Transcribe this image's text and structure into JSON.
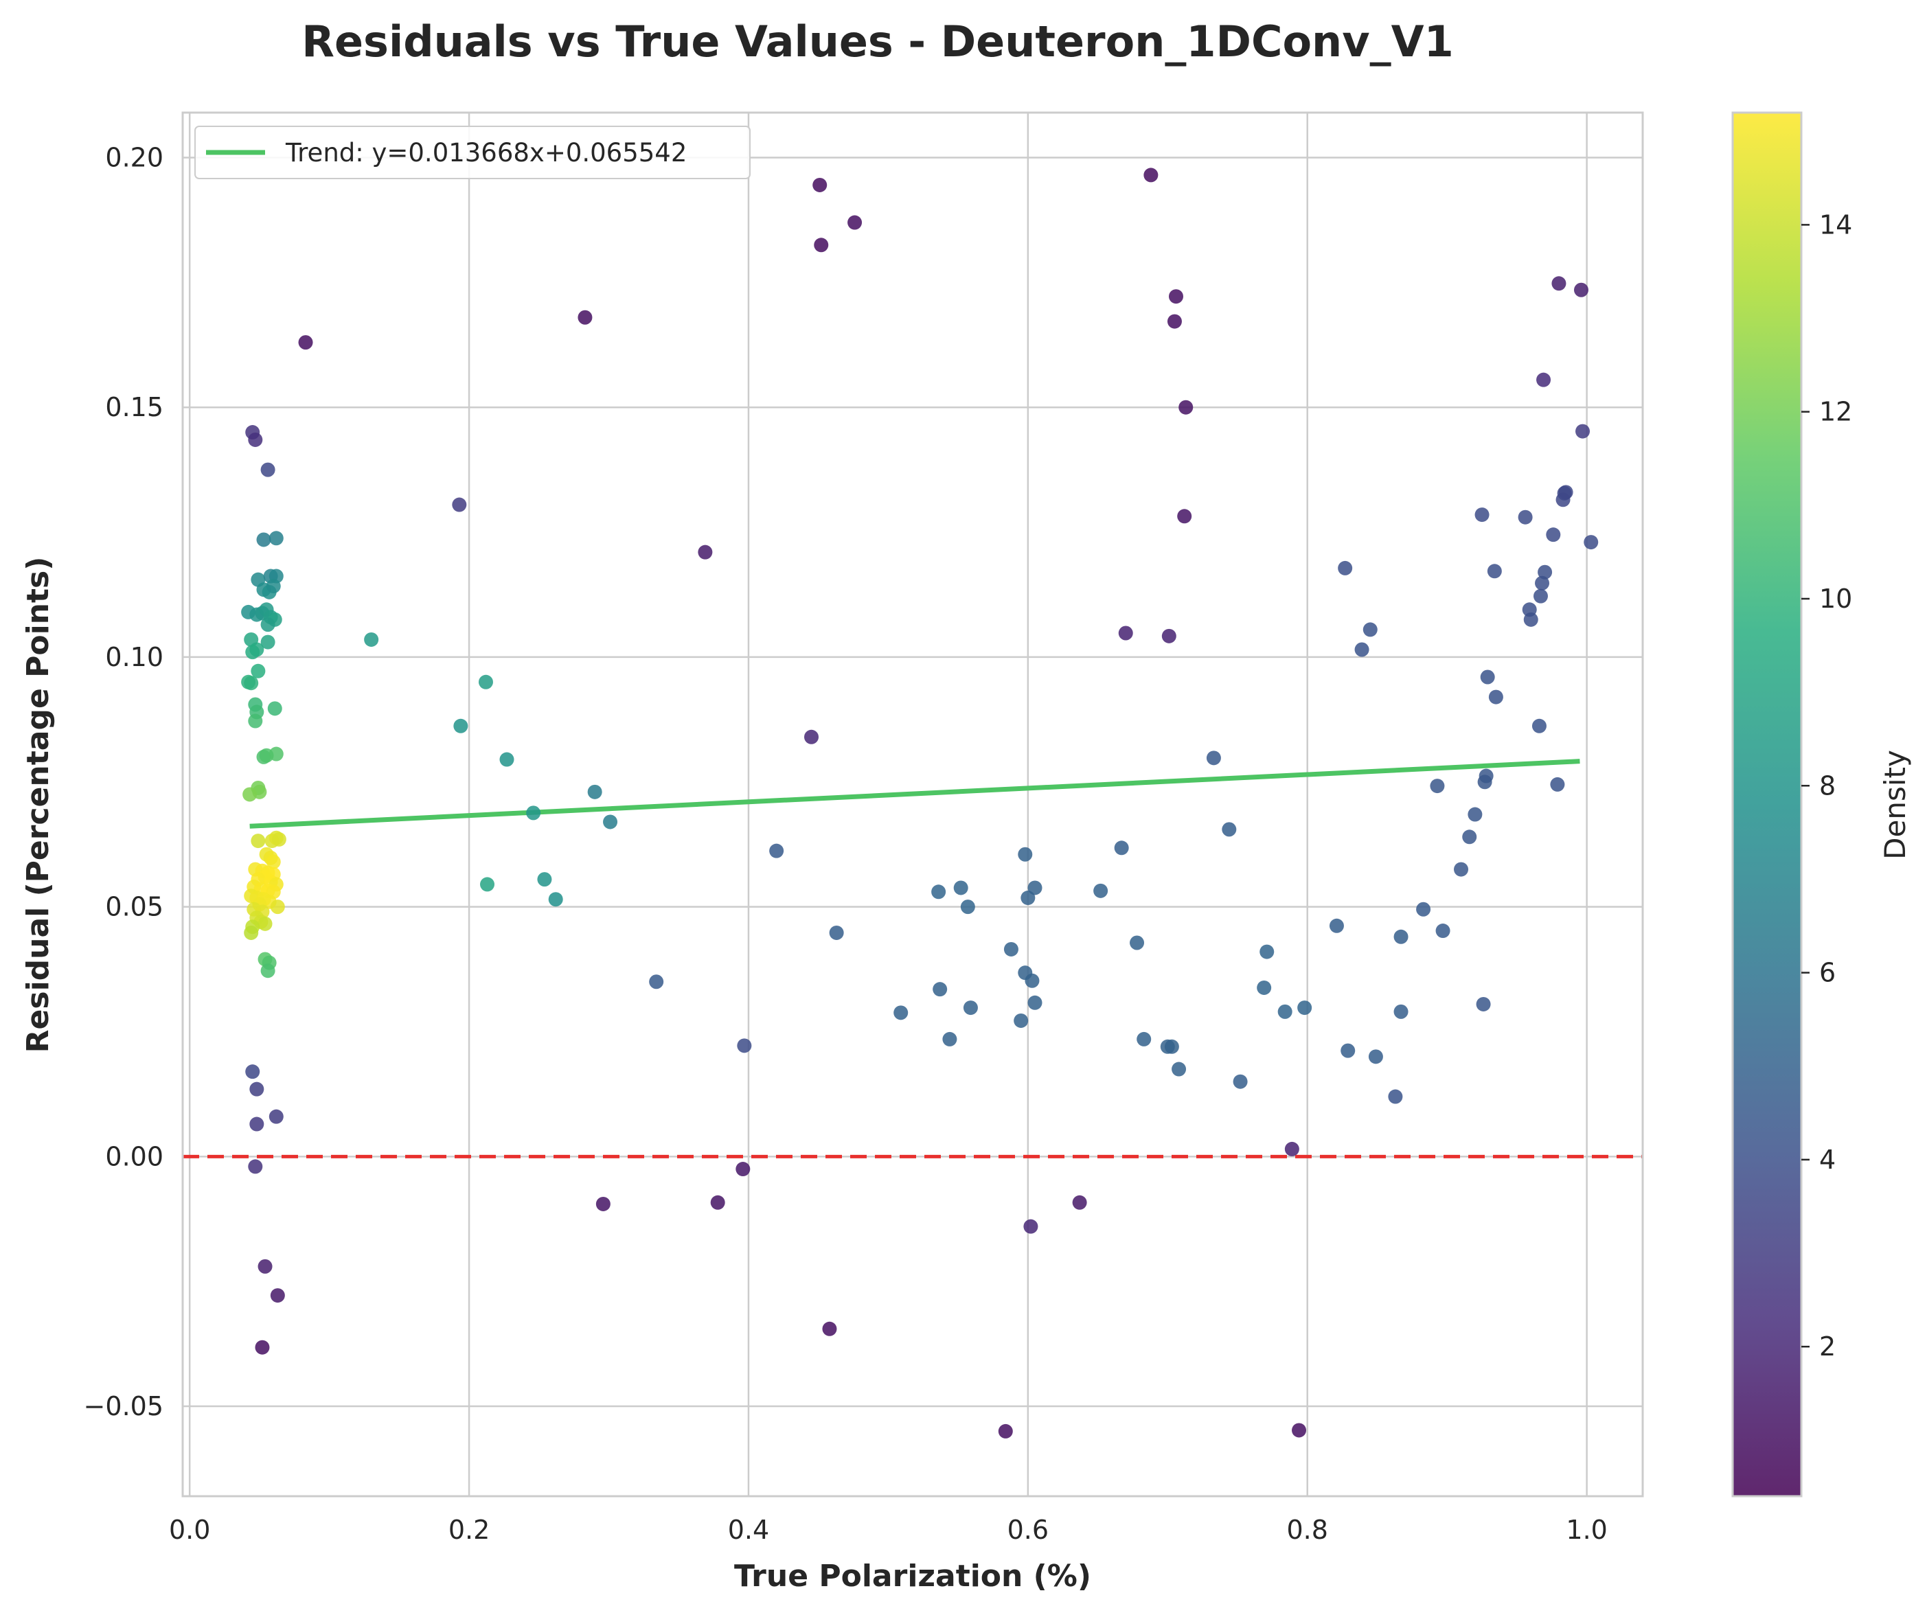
{
  "chart_data": {
    "type": "scatter",
    "title": "Residuals vs True Values - Deuteron_1DConv_V1",
    "xlabel": "True Polarization (%)",
    "ylabel": "Residual (Percentage Points)",
    "xlim": [
      -0.005,
      1.04
    ],
    "ylim": [
      -0.068,
      0.209
    ],
    "xticks": [
      0.0,
      0.2,
      0.4,
      0.6,
      0.8,
      1.0
    ],
    "xtick_labels": [
      "0.0",
      "0.2",
      "0.4",
      "0.6",
      "0.8",
      "1.0"
    ],
    "yticks": [
      -0.05,
      0.0,
      0.05,
      0.1,
      0.15,
      0.2
    ],
    "ytick_labels": [
      "−0.05",
      "0.00",
      "0.05",
      "0.10",
      "0.15",
      "0.20"
    ],
    "grid": true,
    "zero_line": {
      "y": 0.0,
      "color": "#e8302e",
      "style": "dashed"
    },
    "trend": {
      "label": "Trend: y=0.013668x+0.065542",
      "slope": 0.013668,
      "intercept": 0.065542,
      "x_range": [
        0.043,
        0.995
      ],
      "color": "#4dc463"
    },
    "legend_position": "top-left",
    "colorbar": {
      "label": "Density",
      "range": [
        0.4,
        15.2
      ],
      "ticks": [
        2,
        4,
        6,
        8,
        10,
        12,
        14
      ],
      "tick_labels": [
        "2",
        "4",
        "6",
        "8",
        "10",
        "12",
        "14"
      ],
      "colormap": "viridis"
    },
    "points": [
      {
        "x": 0.045,
        "y": 0.145,
        "d": 2.6
      },
      {
        "x": 0.047,
        "y": 0.1435,
        "d": 2.4
      },
      {
        "x": 0.056,
        "y": 0.1375,
        "d": 3.6
      },
      {
        "x": 0.053,
        "y": 0.1235,
        "d": 6.5
      },
      {
        "x": 0.062,
        "y": 0.1238,
        "d": 6.8
      },
      {
        "x": 0.049,
        "y": 0.1155,
        "d": 7.4
      },
      {
        "x": 0.058,
        "y": 0.1162,
        "d": 7.0
      },
      {
        "x": 0.062,
        "y": 0.1162,
        "d": 7.2
      },
      {
        "x": 0.053,
        "y": 0.1135,
        "d": 7.6
      },
      {
        "x": 0.057,
        "y": 0.113,
        "d": 7.8
      },
      {
        "x": 0.06,
        "y": 0.1142,
        "d": 7.5
      },
      {
        "x": 0.042,
        "y": 0.109,
        "d": 7.8
      },
      {
        "x": 0.048,
        "y": 0.1085,
        "d": 8.0
      },
      {
        "x": 0.052,
        "y": 0.1088,
        "d": 8.2
      },
      {
        "x": 0.055,
        "y": 0.1095,
        "d": 8.4
      },
      {
        "x": 0.058,
        "y": 0.108,
        "d": 8.6
      },
      {
        "x": 0.061,
        "y": 0.1075,
        "d": 8.8
      },
      {
        "x": 0.056,
        "y": 0.1065,
        "d": 8.5
      },
      {
        "x": 0.044,
        "y": 0.1035,
        "d": 9.2
      },
      {
        "x": 0.056,
        "y": 0.103,
        "d": 9.1
      },
      {
        "x": 0.048,
        "y": 0.1015,
        "d": 9.4
      },
      {
        "x": 0.045,
        "y": 0.101,
        "d": 9.5
      },
      {
        "x": 0.042,
        "y": 0.095,
        "d": 9.8
      },
      {
        "x": 0.044,
        "y": 0.0948,
        "d": 9.9
      },
      {
        "x": 0.049,
        "y": 0.0972,
        "d": 9.7
      },
      {
        "x": 0.047,
        "y": 0.0905,
        "d": 10.2
      },
      {
        "x": 0.048,
        "y": 0.089,
        "d": 10.4
      },
      {
        "x": 0.061,
        "y": 0.0897,
        "d": 10.3
      },
      {
        "x": 0.047,
        "y": 0.0872,
        "d": 10.6
      },
      {
        "x": 0.053,
        "y": 0.08,
        "d": 10.9
      },
      {
        "x": 0.055,
        "y": 0.0803,
        "d": 11.0
      },
      {
        "x": 0.062,
        "y": 0.0806,
        "d": 11.1
      },
      {
        "x": 0.049,
        "y": 0.0738,
        "d": 12.0
      },
      {
        "x": 0.05,
        "y": 0.073,
        "d": 12.1
      },
      {
        "x": 0.043,
        "y": 0.0725,
        "d": 12.2
      },
      {
        "x": 0.049,
        "y": 0.0632,
        "d": 14.2
      },
      {
        "x": 0.059,
        "y": 0.0632,
        "d": 14.4
      },
      {
        "x": 0.062,
        "y": 0.0638,
        "d": 14.5
      },
      {
        "x": 0.064,
        "y": 0.0635,
        "d": 14.4
      },
      {
        "x": 0.055,
        "y": 0.0605,
        "d": 14.8
      },
      {
        "x": 0.058,
        "y": 0.0598,
        "d": 14.9
      },
      {
        "x": 0.06,
        "y": 0.059,
        "d": 15.0
      },
      {
        "x": 0.047,
        "y": 0.0575,
        "d": 15.0
      },
      {
        "x": 0.052,
        "y": 0.0572,
        "d": 15.1
      },
      {
        "x": 0.056,
        "y": 0.0568,
        "d": 15.1
      },
      {
        "x": 0.06,
        "y": 0.0565,
        "d": 15.2
      },
      {
        "x": 0.054,
        "y": 0.056,
        "d": 15.2
      },
      {
        "x": 0.049,
        "y": 0.0555,
        "d": 15.1
      },
      {
        "x": 0.058,
        "y": 0.055,
        "d": 15.2
      },
      {
        "x": 0.062,
        "y": 0.0545,
        "d": 15.0
      },
      {
        "x": 0.046,
        "y": 0.054,
        "d": 15.0
      },
      {
        "x": 0.051,
        "y": 0.0535,
        "d": 15.1
      },
      {
        "x": 0.056,
        "y": 0.0532,
        "d": 15.2
      },
      {
        "x": 0.06,
        "y": 0.053,
        "d": 15.1
      },
      {
        "x": 0.044,
        "y": 0.0522,
        "d": 14.8
      },
      {
        "x": 0.048,
        "y": 0.0518,
        "d": 14.9
      },
      {
        "x": 0.053,
        "y": 0.0515,
        "d": 15.0
      },
      {
        "x": 0.057,
        "y": 0.051,
        "d": 15.0
      },
      {
        "x": 0.05,
        "y": 0.0505,
        "d": 14.9
      },
      {
        "x": 0.063,
        "y": 0.05,
        "d": 14.6
      },
      {
        "x": 0.046,
        "y": 0.0495,
        "d": 14.5
      },
      {
        "x": 0.052,
        "y": 0.049,
        "d": 14.6
      },
      {
        "x": 0.048,
        "y": 0.0478,
        "d": 14.3
      },
      {
        "x": 0.051,
        "y": 0.047,
        "d": 14.2
      },
      {
        "x": 0.054,
        "y": 0.0466,
        "d": 14.0
      },
      {
        "x": 0.045,
        "y": 0.046,
        "d": 13.8
      },
      {
        "x": 0.044,
        "y": 0.0448,
        "d": 13.6
      },
      {
        "x": 0.054,
        "y": 0.0395,
        "d": 11.2
      },
      {
        "x": 0.057,
        "y": 0.0388,
        "d": 11.0
      },
      {
        "x": 0.056,
        "y": 0.0372,
        "d": 10.8
      },
      {
        "x": 0.045,
        "y": 0.017,
        "d": 3.6
      },
      {
        "x": 0.048,
        "y": 0.0135,
        "d": 3.2
      },
      {
        "x": 0.048,
        "y": 0.0065,
        "d": 2.9
      },
      {
        "x": 0.062,
        "y": 0.008,
        "d": 3.0
      },
      {
        "x": 0.047,
        "y": -0.002,
        "d": 2.5
      },
      {
        "x": 0.054,
        "y": -0.022,
        "d": 1.6
      },
      {
        "x": 0.063,
        "y": -0.0278,
        "d": 1.4
      },
      {
        "x": 0.052,
        "y": -0.0382,
        "d": 1.0
      },
      {
        "x": 0.083,
        "y": 0.163,
        "d": 1.0
      },
      {
        "x": 0.13,
        "y": 0.1035,
        "d": 8.4
      },
      {
        "x": 0.193,
        "y": 0.1305,
        "d": 3.0
      },
      {
        "x": 0.194,
        "y": 0.0862,
        "d": 8.0
      },
      {
        "x": 0.212,
        "y": 0.095,
        "d": 8.6
      },
      {
        "x": 0.213,
        "y": 0.0545,
        "d": 9.0
      },
      {
        "x": 0.227,
        "y": 0.0795,
        "d": 8.0
      },
      {
        "x": 0.246,
        "y": 0.0688,
        "d": 8.2
      },
      {
        "x": 0.254,
        "y": 0.0555,
        "d": 8.0
      },
      {
        "x": 0.262,
        "y": 0.0515,
        "d": 7.8
      },
      {
        "x": 0.283,
        "y": 0.168,
        "d": 1.0
      },
      {
        "x": 0.29,
        "y": 0.073,
        "d": 6.5
      },
      {
        "x": 0.296,
        "y": -0.0095,
        "d": 1.2
      },
      {
        "x": 0.301,
        "y": 0.067,
        "d": 6.6
      },
      {
        "x": 0.334,
        "y": 0.035,
        "d": 4.6
      },
      {
        "x": 0.369,
        "y": 0.121,
        "d": 1.5
      },
      {
        "x": 0.378,
        "y": -0.0092,
        "d": 1.2
      },
      {
        "x": 0.396,
        "y": -0.0025,
        "d": 1.3
      },
      {
        "x": 0.397,
        "y": 0.0222,
        "d": 3.8
      },
      {
        "x": 0.42,
        "y": 0.0612,
        "d": 4.6
      },
      {
        "x": 0.445,
        "y": 0.084,
        "d": 2.0
      },
      {
        "x": 0.451,
        "y": 0.1945,
        "d": 0.9
      },
      {
        "x": 0.452,
        "y": 0.1825,
        "d": 0.9
      },
      {
        "x": 0.458,
        "y": -0.0345,
        "d": 1.0
      },
      {
        "x": 0.463,
        "y": 0.0448,
        "d": 4.8
      },
      {
        "x": 0.476,
        "y": 0.187,
        "d": 1.0
      },
      {
        "x": 0.509,
        "y": 0.0288,
        "d": 5.0
      },
      {
        "x": 0.536,
        "y": 0.053,
        "d": 5.2
      },
      {
        "x": 0.537,
        "y": 0.0335,
        "d": 5.0
      },
      {
        "x": 0.544,
        "y": 0.0235,
        "d": 5.0
      },
      {
        "x": 0.552,
        "y": 0.0538,
        "d": 5.2
      },
      {
        "x": 0.557,
        "y": 0.05,
        "d": 5.2
      },
      {
        "x": 0.559,
        "y": 0.0298,
        "d": 5.0
      },
      {
        "x": 0.584,
        "y": -0.055,
        "d": 1.0
      },
      {
        "x": 0.588,
        "y": 0.0415,
        "d": 5.0
      },
      {
        "x": 0.595,
        "y": 0.0272,
        "d": 5.0
      },
      {
        "x": 0.598,
        "y": 0.0605,
        "d": 5.0
      },
      {
        "x": 0.598,
        "y": 0.0368,
        "d": 5.0
      },
      {
        "x": 0.6,
        "y": 0.0518,
        "d": 5.0
      },
      {
        "x": 0.602,
        "y": -0.014,
        "d": 2.0
      },
      {
        "x": 0.603,
        "y": 0.0352,
        "d": 5.0
      },
      {
        "x": 0.605,
        "y": 0.0538,
        "d": 5.0
      },
      {
        "x": 0.605,
        "y": 0.0308,
        "d": 5.0
      },
      {
        "x": 0.637,
        "y": -0.0092,
        "d": 1.4
      },
      {
        "x": 0.652,
        "y": 0.0532,
        "d": 5.0
      },
      {
        "x": 0.667,
        "y": 0.0618,
        "d": 4.8
      },
      {
        "x": 0.67,
        "y": 0.1048,
        "d": 1.8
      },
      {
        "x": 0.678,
        "y": 0.0428,
        "d": 5.0
      },
      {
        "x": 0.683,
        "y": 0.0235,
        "d": 5.0
      },
      {
        "x": 0.688,
        "y": 0.1965,
        "d": 0.9
      },
      {
        "x": 0.7,
        "y": 0.022,
        "d": 5.0
      },
      {
        "x": 0.701,
        "y": 0.1042,
        "d": 1.8
      },
      {
        "x": 0.703,
        "y": 0.022,
        "d": 5.0
      },
      {
        "x": 0.705,
        "y": 0.1672,
        "d": 1.0
      },
      {
        "x": 0.706,
        "y": 0.1722,
        "d": 1.0
      },
      {
        "x": 0.708,
        "y": 0.0175,
        "d": 5.0
      },
      {
        "x": 0.712,
        "y": 0.1282,
        "d": 1.2
      },
      {
        "x": 0.713,
        "y": 0.15,
        "d": 1.1
      },
      {
        "x": 0.733,
        "y": 0.0798,
        "d": 4.5
      },
      {
        "x": 0.744,
        "y": 0.0655,
        "d": 4.8
      },
      {
        "x": 0.752,
        "y": 0.015,
        "d": 4.8
      },
      {
        "x": 0.769,
        "y": 0.0338,
        "d": 5.2
      },
      {
        "x": 0.771,
        "y": 0.041,
        "d": 5.2
      },
      {
        "x": 0.784,
        "y": 0.029,
        "d": 5.2
      },
      {
        "x": 0.789,
        "y": 0.0015,
        "d": 1.8
      },
      {
        "x": 0.794,
        "y": -0.0548,
        "d": 1.0
      },
      {
        "x": 0.798,
        "y": 0.0298,
        "d": 5.2
      },
      {
        "x": 0.821,
        "y": 0.0462,
        "d": 4.8
      },
      {
        "x": 0.827,
        "y": 0.1178,
        "d": 4.0
      },
      {
        "x": 0.829,
        "y": 0.0212,
        "d": 4.8
      },
      {
        "x": 0.839,
        "y": 0.1015,
        "d": 4.2
      },
      {
        "x": 0.845,
        "y": 0.1055,
        "d": 4.2
      },
      {
        "x": 0.849,
        "y": 0.02,
        "d": 4.8
      },
      {
        "x": 0.863,
        "y": 0.012,
        "d": 4.2
      },
      {
        "x": 0.867,
        "y": 0.044,
        "d": 4.8
      },
      {
        "x": 0.867,
        "y": 0.029,
        "d": 4.8
      },
      {
        "x": 0.883,
        "y": 0.0495,
        "d": 4.6
      },
      {
        "x": 0.893,
        "y": 0.0742,
        "d": 4.4
      },
      {
        "x": 0.897,
        "y": 0.0452,
        "d": 4.6
      },
      {
        "x": 0.91,
        "y": 0.0575,
        "d": 4.4
      },
      {
        "x": 0.916,
        "y": 0.064,
        "d": 4.4
      },
      {
        "x": 0.92,
        "y": 0.0685,
        "d": 4.4
      },
      {
        "x": 0.925,
        "y": 0.1285,
        "d": 3.8
      },
      {
        "x": 0.926,
        "y": 0.0305,
        "d": 4.4
      },
      {
        "x": 0.927,
        "y": 0.075,
        "d": 4.4
      },
      {
        "x": 0.928,
        "y": 0.0762,
        "d": 4.4
      },
      {
        "x": 0.929,
        "y": 0.096,
        "d": 4.2
      },
      {
        "x": 0.934,
        "y": 0.1172,
        "d": 4.0
      },
      {
        "x": 0.935,
        "y": 0.092,
        "d": 4.2
      },
      {
        "x": 0.956,
        "y": 0.128,
        "d": 3.8
      },
      {
        "x": 0.959,
        "y": 0.1095,
        "d": 4.0
      },
      {
        "x": 0.96,
        "y": 0.1075,
        "d": 4.0
      },
      {
        "x": 0.966,
        "y": 0.0862,
        "d": 4.2
      },
      {
        "x": 0.967,
        "y": 0.1122,
        "d": 4.0
      },
      {
        "x": 0.968,
        "y": 0.1148,
        "d": 4.0
      },
      {
        "x": 0.969,
        "y": 0.1555,
        "d": 2.2
      },
      {
        "x": 0.97,
        "y": 0.117,
        "d": 4.0
      },
      {
        "x": 0.976,
        "y": 0.1245,
        "d": 3.8
      },
      {
        "x": 0.979,
        "y": 0.0745,
        "d": 4.2
      },
      {
        "x": 0.98,
        "y": 0.1748,
        "d": 1.6
      },
      {
        "x": 0.983,
        "y": 0.1315,
        "d": 3.6
      },
      {
        "x": 0.984,
        "y": 0.1328,
        "d": 3.6
      },
      {
        "x": 0.985,
        "y": 0.133,
        "d": 3.6
      },
      {
        "x": 0.996,
        "y": 0.1735,
        "d": 1.6
      },
      {
        "x": 0.997,
        "y": 0.1452,
        "d": 3.0
      },
      {
        "x": 1.003,
        "y": 0.123,
        "d": 3.8
      }
    ]
  }
}
